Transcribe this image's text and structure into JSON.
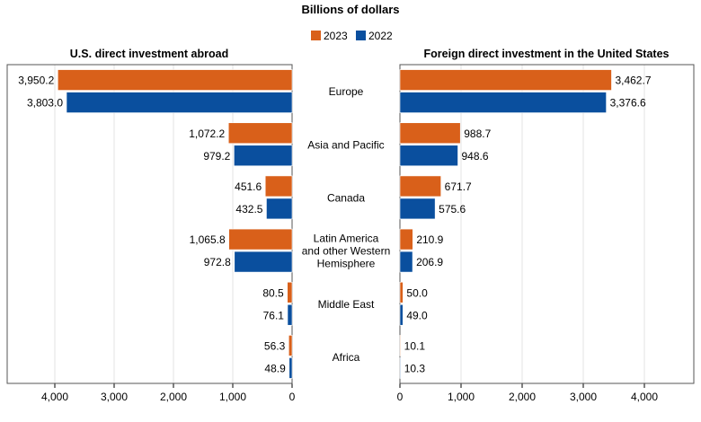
{
  "chart_data": {
    "type": "bar",
    "title": "Billions of dollars",
    "legend": [
      {
        "name": "2023",
        "color": "#d9601a"
      },
      {
        "name": "2022",
        "color": "#0a4f9e"
      }
    ],
    "legend_placement": "top-center",
    "categories": [
      [
        "Europe"
      ],
      [
        "Asia and Pacific"
      ],
      [
        "Canada"
      ],
      [
        "Latin America",
        "and other Western",
        "Hemisphere"
      ],
      [
        "Middle East"
      ],
      [
        "Africa"
      ]
    ],
    "panels": [
      {
        "title": "U.S. direct investment abroad",
        "orientation": "reversed",
        "xlim": [
          0,
          4400
        ],
        "ticks": [
          {
            "value": 4000,
            "label": "4,000"
          },
          {
            "value": 3000,
            "label": "3,000"
          },
          {
            "value": 2000,
            "label": "2,000"
          },
          {
            "value": 1000,
            "label": "1,000"
          },
          {
            "value": 0,
            "label": "0"
          }
        ],
        "series": [
          {
            "name": "2023",
            "values": [
              3950.2,
              1072.2,
              451.6,
              1065.8,
              80.5,
              56.3
            ],
            "labels": [
              "3,950.2",
              "1,072.2",
              "451.6",
              "1,065.8",
              "80.5",
              "56.3"
            ]
          },
          {
            "name": "2022",
            "values": [
              3803.0,
              979.2,
              432.5,
              972.8,
              76.1,
              48.9
            ],
            "labels": [
              "3,803.0",
              "979.2",
              "432.5",
              "972.8",
              "76.1",
              "48.9"
            ]
          }
        ]
      },
      {
        "title": "Foreign direct investment in the United States",
        "orientation": "normal",
        "xlim": [
          0,
          4800
        ],
        "ticks": [
          {
            "value": 0,
            "label": "0"
          },
          {
            "value": 1000,
            "label": "1,000"
          },
          {
            "value": 2000,
            "label": "2,000"
          },
          {
            "value": 3000,
            "label": "3,000"
          },
          {
            "value": 4000,
            "label": "4,000"
          }
        ],
        "series": [
          {
            "name": "2023",
            "values": [
              3462.7,
              988.7,
              671.7,
              210.9,
              50.0,
              10.1
            ],
            "labels": [
              "3,462.7",
              "988.7",
              "671.7",
              "210.9",
              "50.0",
              "10.1"
            ]
          },
          {
            "name": "2022",
            "values": [
              3376.6,
              948.6,
              575.6,
              206.9,
              49.0,
              10.3
            ],
            "labels": [
              "3,376.6",
              "948.6",
              "575.6",
              "206.9",
              "49.0",
              "10.3"
            ]
          }
        ]
      }
    ],
    "grid": true
  }
}
